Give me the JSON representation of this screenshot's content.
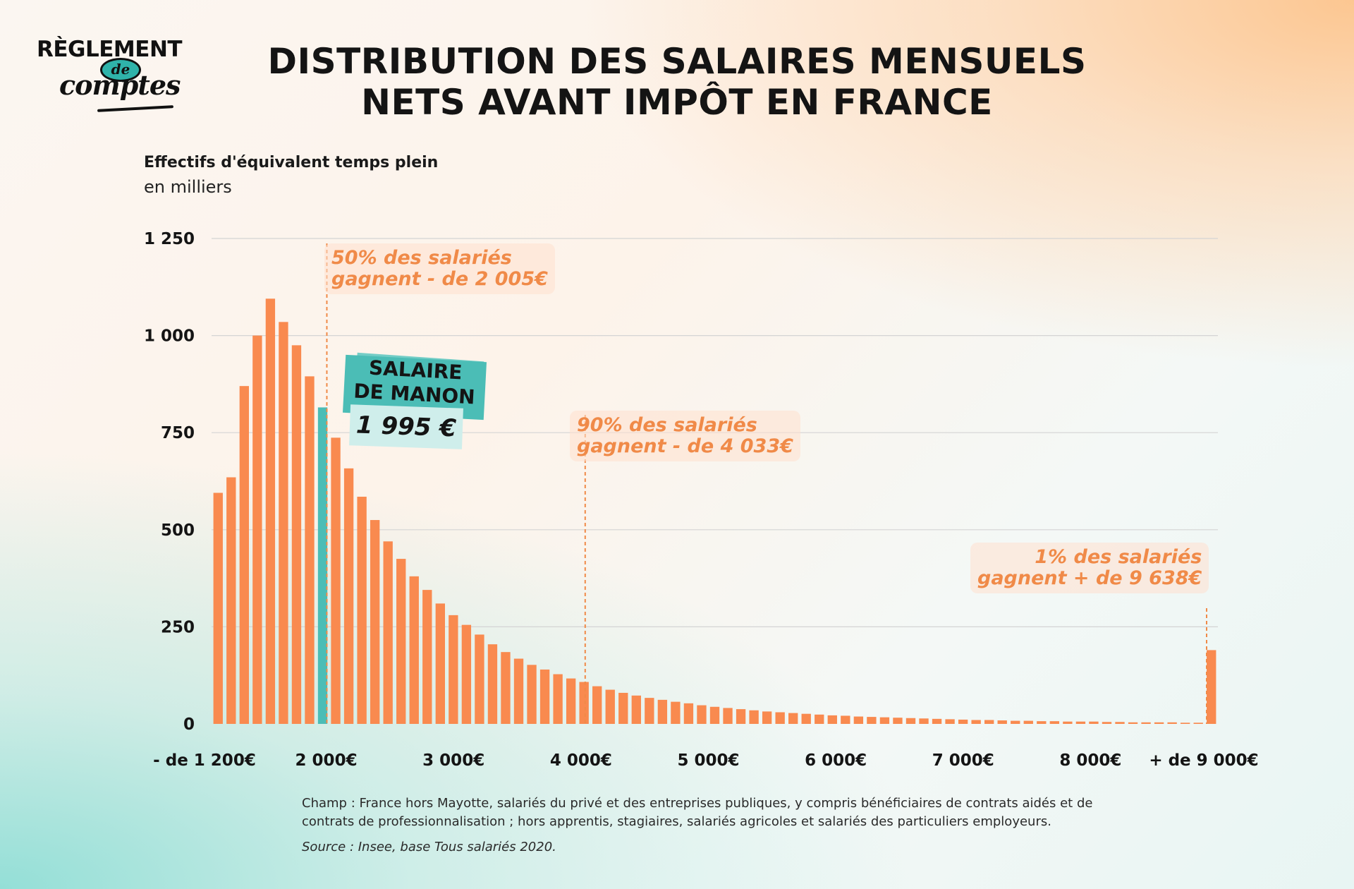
{
  "logo": {
    "line1": "RÈGLEMENT",
    "line2": "de",
    "line3": "comptes"
  },
  "title": {
    "line1": "DISTRIBUTION DES SALAIRES MENSUELS",
    "line2": "NETS AVANT IMPÔT EN FRANCE"
  },
  "colors": {
    "bars": "#f98a4f",
    "highlight": "#4bbdb6",
    "annotation": "#f08a48",
    "text": "#141414"
  },
  "chart_data": {
    "type": "bar",
    "ylabel": "Effectifs d'équivalent temps plein",
    "yunit": "en milliers",
    "ylim": [
      0,
      1250
    ],
    "yticks": [
      0,
      250,
      500,
      750,
      "1 000",
      "1 250"
    ],
    "yticks_values": [
      0,
      250,
      500,
      750,
      1000,
      1250
    ],
    "ytick_labels": [
      "0",
      "250",
      "500",
      "750",
      "1 000",
      "1 250"
    ],
    "grid": true,
    "xlim": [
      1100,
      9000
    ],
    "xtick_labels": [
      {
        "label": "- de 1 200€",
        "x": 1100
      },
      {
        "label": "2 000€",
        "x": 2000
      },
      {
        "label": "3 000€",
        "x": 3000
      },
      {
        "label": "4 000€",
        "x": 4000
      },
      {
        "label": "5 000€",
        "x": 5000
      },
      {
        "label": "6 000€",
        "x": 6000
      },
      {
        "label": "7 000€",
        "x": 7000
      },
      {
        "label": "8 000€",
        "x": 8000
      },
      {
        "label": "+  de 9 000€",
        "x": 9000
      }
    ],
    "series": [
      {
        "values": [
          595,
          635,
          870,
          1000,
          1095,
          1035,
          975,
          895,
          815,
          737,
          658,
          585,
          525,
          470,
          425,
          380,
          345,
          310,
          280,
          255,
          230,
          205,
          185,
          168,
          152,
          140,
          128,
          117,
          108,
          97,
          88,
          80,
          73,
          67,
          62,
          57,
          53,
          48,
          44,
          41,
          38,
          35,
          32,
          30,
          28,
          26,
          24,
          22,
          21,
          19,
          18,
          17,
          16,
          15,
          14,
          13,
          12,
          11,
          10,
          10,
          9,
          8,
          8,
          7,
          7,
          6,
          6,
          6,
          5,
          5,
          4,
          4,
          4,
          4,
          3,
          3,
          190
        ]
      }
    ],
    "highlight_index": 8,
    "reference_lines": [
      {
        "x": 2005,
        "label_line1": "50% des salariés",
        "label_line2": "gagnent - de 2 005€"
      },
      {
        "x": 4033,
        "label_line1": "90% des salariés",
        "label_line2": "gagnent - de 4 033€"
      },
      {
        "x": 9000,
        "label_line1": "1% des salariés",
        "label_line2": "gagnent + de 9 638€"
      }
    ],
    "highlight": {
      "label_line1": "SALAIRE",
      "label_line2": "DE MANON",
      "value": "1 995 €"
    }
  },
  "footnote": "Champ : France hors Mayotte, salariés du privé et des entreprises publiques, y compris bénéficiaires de contrats aidés et de contrats de professionnalisation ; hors apprentis, stagiaires, salariés agricoles et salariés des particuliers employeurs.",
  "source": "Source : Insee, base Tous salariés 2020."
}
